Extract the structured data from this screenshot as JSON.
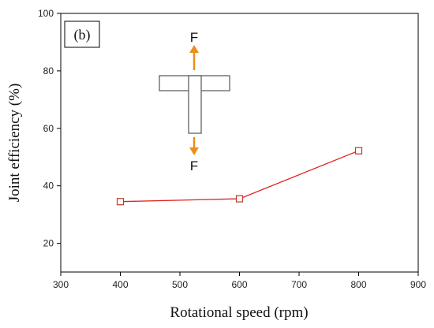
{
  "chart_data": {
    "type": "line",
    "panel_label": "(b)",
    "xlabel": "Rotational speed (rpm)",
    "ylabel": "Joint efficiency (%)",
    "xlim": [
      300,
      900
    ],
    "ylim": [
      10,
      100
    ],
    "x_ticks": [
      300,
      400,
      500,
      600,
      700,
      800,
      900
    ],
    "y_ticks": [
      20,
      40,
      60,
      80,
      100
    ],
    "grid": false,
    "series": [
      {
        "x": [
          400,
          600,
          800
        ],
        "y": [
          34.5,
          35.5,
          52.2
        ],
        "color": "#e0211b",
        "marker": "square-open",
        "marker_color": "#c0392b"
      }
    ],
    "inset": {
      "force_top_label": "F",
      "force_bottom_label": "F",
      "arrow_color": "#e8901a"
    }
  }
}
